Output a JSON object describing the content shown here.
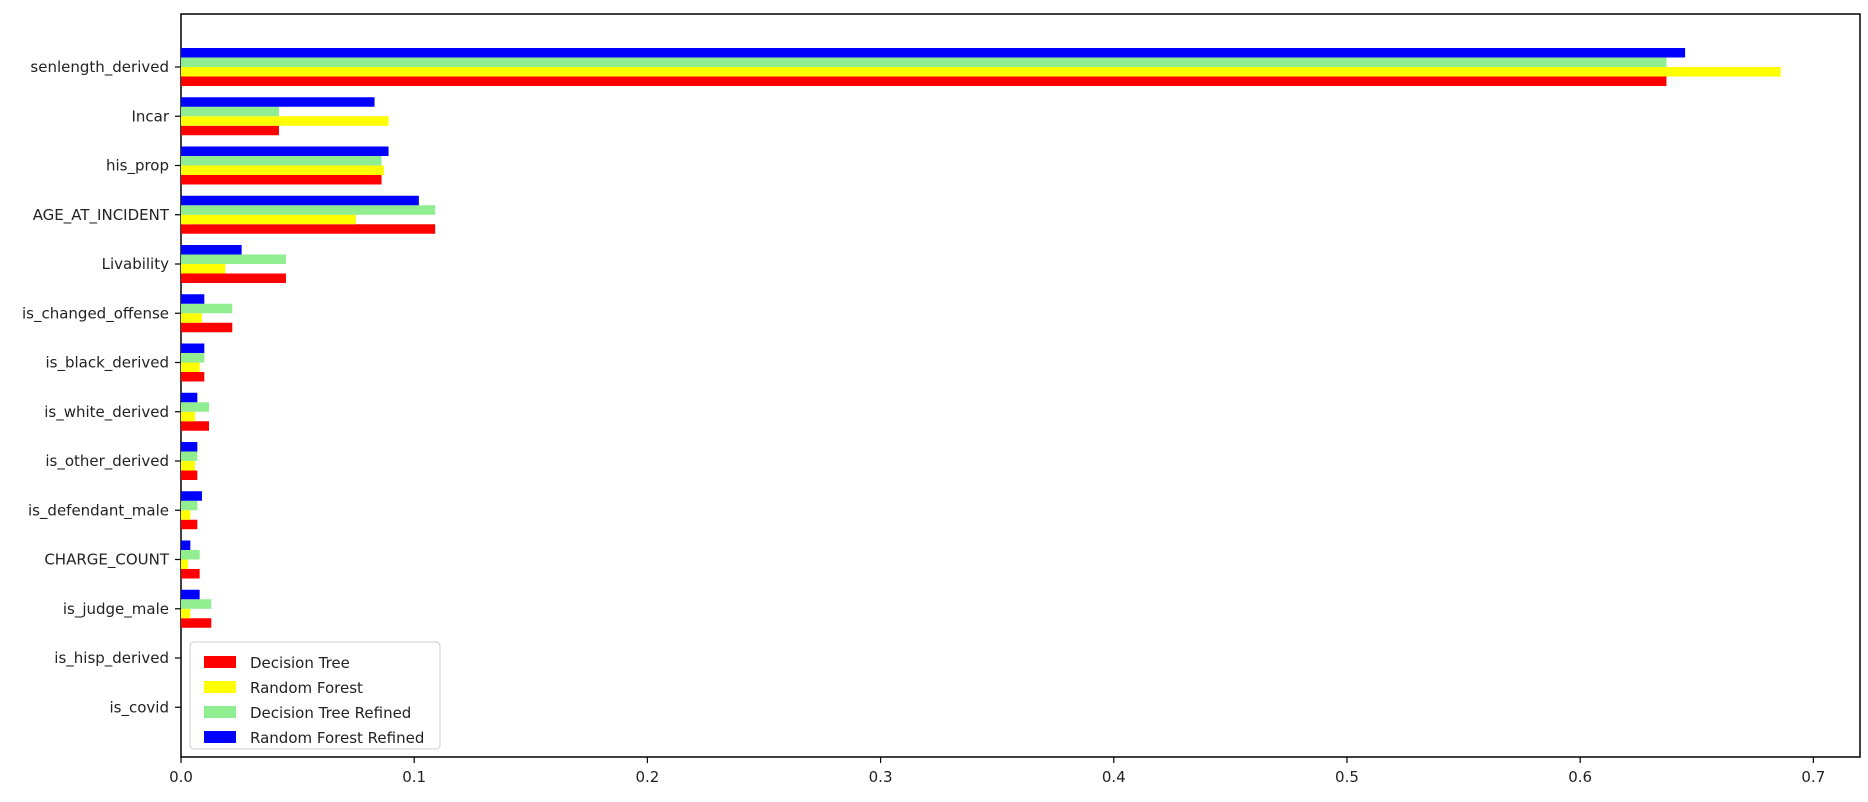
{
  "chart_data": {
    "type": "bar",
    "orientation": "horizontal",
    "title": "",
    "xlabel": "",
    "ylabel": "",
    "xlim": [
      0,
      0.72
    ],
    "x_ticks": [
      0.0,
      0.1,
      0.2,
      0.3,
      0.4,
      0.5,
      0.6,
      0.7
    ],
    "x_tick_labels": [
      "0.0",
      "0.1",
      "0.2",
      "0.3",
      "0.4",
      "0.5",
      "0.6",
      "0.7"
    ],
    "grid": false,
    "legend_position": "lower-left",
    "categories": [
      "senlength_derived",
      "Incar",
      "his_prop",
      "AGE_AT_INCIDENT",
      "Livability",
      "is_changed_offense",
      "is_black_derived",
      "is_white_derived",
      "is_other_derived",
      "is_defendant_male",
      "CHARGE_COUNT",
      "is_judge_male",
      "is_hisp_derived",
      "is_covid"
    ],
    "series": [
      {
        "name": "Decision Tree",
        "color": "#ff0000",
        "values": [
          0.637,
          0.042,
          0.086,
          0.109,
          0.045,
          0.022,
          0.01,
          0.012,
          0.007,
          0.007,
          0.008,
          0.013,
          0.0,
          0.0
        ]
      },
      {
        "name": "Random Forest",
        "color": "#ffff00",
        "values": [
          0.686,
          0.089,
          0.087,
          0.075,
          0.019,
          0.009,
          0.008,
          0.006,
          0.006,
          0.004,
          0.003,
          0.004,
          0.0,
          0.0
        ]
      },
      {
        "name": "Decision Tree Refined",
        "color": "#90ee90",
        "values": [
          0.637,
          0.042,
          0.086,
          0.109,
          0.045,
          0.022,
          0.01,
          0.012,
          0.007,
          0.007,
          0.008,
          0.013,
          0.0,
          0.0
        ]
      },
      {
        "name": "Random Forest Refined",
        "color": "#0000ff",
        "values": [
          0.645,
          0.083,
          0.089,
          0.102,
          0.026,
          0.01,
          0.01,
          0.007,
          0.007,
          0.009,
          0.004,
          0.008,
          0.0,
          0.0
        ]
      }
    ]
  }
}
